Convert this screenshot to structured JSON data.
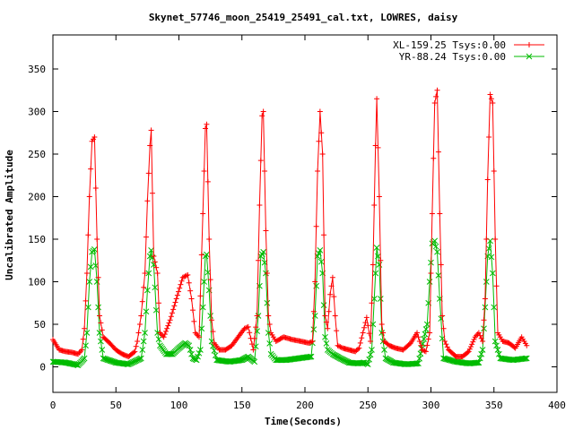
{
  "chart_data": {
    "type": "line",
    "title": "Skynet_57746_moon_25419_25491_cal.txt, LOWRES, daisy",
    "xlabel": "Time(Seconds)",
    "ylabel": "Uncalibrated Amplitude",
    "xlim": [
      0,
      400
    ],
    "ylim": [
      -30,
      390
    ],
    "x_ticks": [
      0,
      50,
      100,
      150,
      200,
      250,
      300,
      350,
      400
    ],
    "y_ticks": [
      0,
      50,
      100,
      150,
      200,
      250,
      300,
      350
    ],
    "x_tick_labels": [
      "0",
      "50",
      "100",
      "150",
      "200",
      "250",
      "300",
      "350",
      "400"
    ],
    "y_tick_labels": [
      "0",
      "50",
      "100",
      "150",
      "200",
      "250",
      "300",
      "350"
    ],
    "grid": false,
    "legend_position": "top-right",
    "series": [
      {
        "name": "XL-159.25 Tsys:0.00",
        "color": "#ff0000",
        "marker": "plus",
        "x": [
          0,
          5,
          10,
          15,
          20,
          23,
          25,
          27,
          29,
          31,
          33,
          35,
          37,
          40,
          45,
          50,
          55,
          60,
          65,
          67,
          70,
          73,
          75,
          77,
          78,
          80,
          83,
          85,
          88,
          93,
          98,
          103,
          107,
          110,
          113,
          116,
          119,
          121,
          122,
          124,
          126,
          128,
          132,
          137,
          142,
          147,
          152,
          155,
          159,
          162,
          164,
          166,
          167,
          169,
          171,
          173,
          177,
          183,
          190,
          197,
          203,
          206,
          208,
          210,
          212,
          214,
          216,
          218,
          220,
          222,
          224,
          226,
          230,
          235,
          240,
          243,
          246,
          249,
          252,
          254,
          256,
          257,
          259,
          261,
          263,
          267,
          272,
          278,
          284,
          289,
          293,
          296,
          299,
          301,
          303,
          305,
          307,
          309,
          311,
          314,
          320,
          325,
          330,
          335,
          338,
          341,
          343,
          345,
          347,
          349,
          351,
          353,
          357,
          362,
          367,
          372,
          376
        ],
        "values": [
          32,
          20,
          18,
          17,
          15,
          20,
          45,
          110,
          200,
          265,
          270,
          150,
          60,
          35,
          28,
          20,
          15,
          12,
          18,
          30,
          60,
          110,
          195,
          260,
          278,
          130,
          110,
          40,
          35,
          55,
          80,
          105,
          108,
          80,
          40,
          35,
          180,
          280,
          285,
          150,
          55,
          28,
          20,
          20,
          25,
          35,
          45,
          47,
          20,
          60,
          190,
          295,
          300,
          160,
          60,
          40,
          30,
          35,
          32,
          30,
          28,
          30,
          100,
          230,
          300,
          250,
          60,
          45,
          85,
          105,
          60,
          25,
          22,
          20,
          18,
          22,
          40,
          58,
          30,
          120,
          260,
          315,
          200,
          50,
          30,
          25,
          22,
          20,
          28,
          40,
          20,
          18,
          40,
          180,
          310,
          325,
          180,
          60,
          30,
          20,
          12,
          12,
          18,
          35,
          40,
          30,
          80,
          220,
          320,
          310,
          150,
          40,
          30,
          28,
          22,
          35,
          25
        ]
      },
      {
        "name": "YR-88.24 Tsys:0.00",
        "color": "#00bb00",
        "marker": "cross",
        "x": [
          0,
          10,
          20,
          25,
          27,
          29,
          31,
          33,
          35,
          37,
          40,
          50,
          60,
          70,
          73,
          75,
          77,
          78,
          80,
          83,
          85,
          90,
          95,
          100,
          105,
          108,
          111,
          114,
          117,
          119,
          121,
          122,
          124,
          126,
          130,
          140,
          150,
          155,
          160,
          163,
          165,
          167,
          169,
          171,
          173,
          177,
          185,
          195,
          205,
          208,
          210,
          212,
          214,
          216,
          218,
          222,
          228,
          235,
          242,
          247,
          250,
          253,
          255,
          257,
          259,
          261,
          264,
          270,
          280,
          290,
          297,
          299,
          301,
          303,
          305,
          307,
          310,
          320,
          330,
          338,
          341,
          343,
          345,
          347,
          349,
          351,
          355,
          365,
          376
        ],
        "values": [
          6,
          5,
          2,
          10,
          40,
          100,
          135,
          138,
          100,
          40,
          10,
          5,
          3,
          10,
          40,
          90,
          130,
          137,
          120,
          40,
          25,
          15,
          15,
          22,
          28,
          25,
          10,
          8,
          20,
          70,
          130,
          132,
          90,
          30,
          8,
          6,
          8,
          12,
          6,
          60,
          130,
          135,
          110,
          40,
          15,
          8,
          8,
          10,
          12,
          60,
          130,
          137,
          110,
          35,
          20,
          15,
          10,
          5,
          4,
          5,
          3,
          20,
          80,
          140,
          120,
          40,
          10,
          5,
          3,
          4,
          50,
          100,
          145,
          148,
          135,
          80,
          10,
          6,
          4,
          5,
          20,
          70,
          130,
          148,
          110,
          30,
          10,
          8,
          10
        ]
      }
    ]
  }
}
